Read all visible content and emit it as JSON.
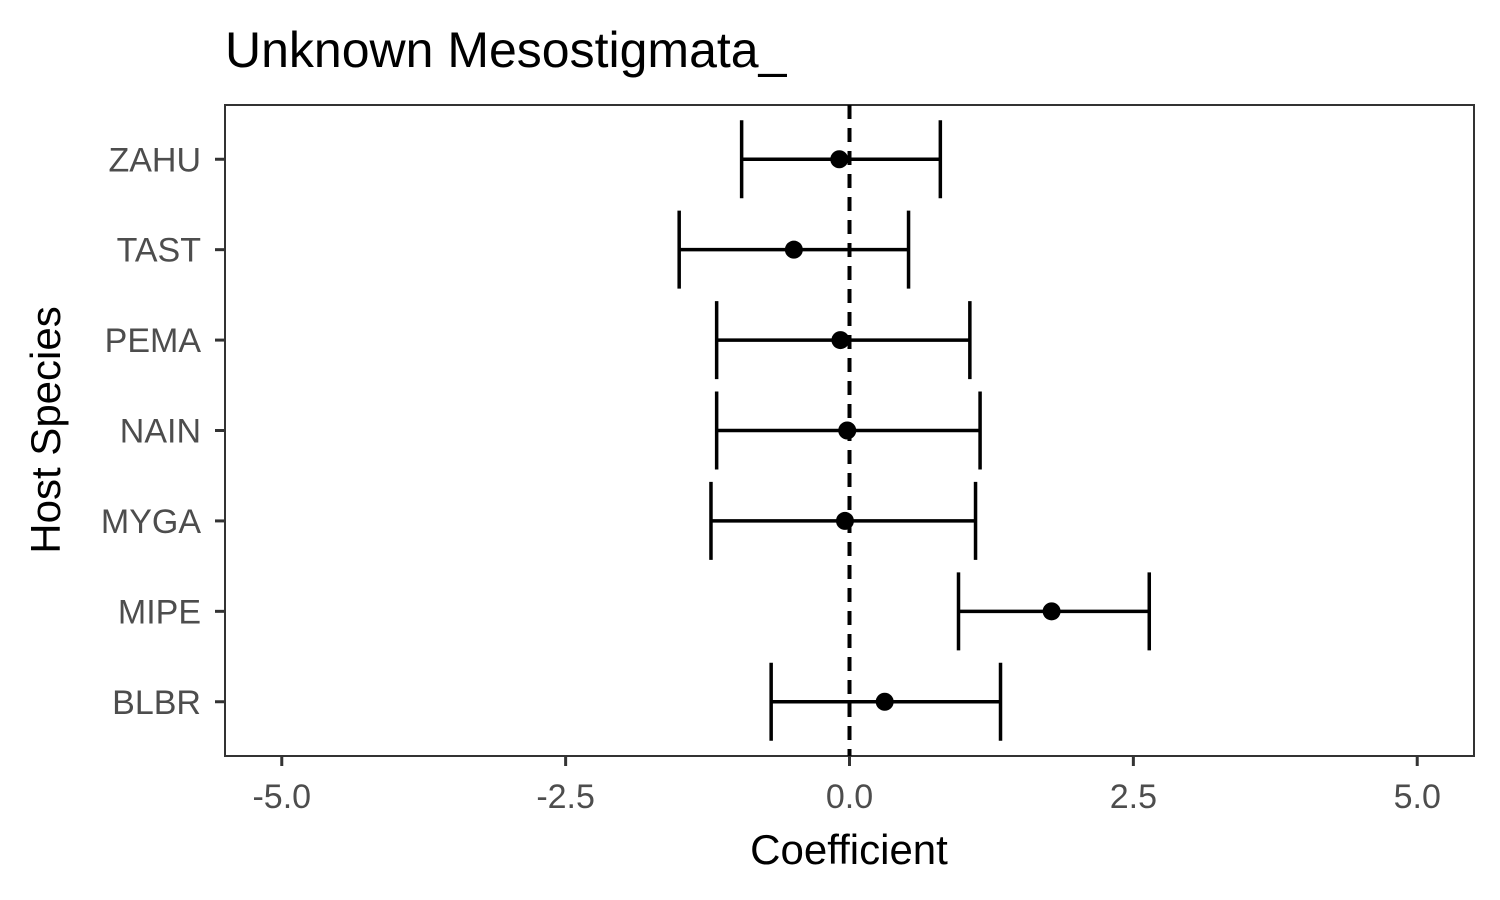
{
  "chart_data": {
    "type": "scatter",
    "subtype": "coefficient-plot-with-error-bars",
    "title": "Unknown Mesostigmata_",
    "xlabel": "Coefficient",
    "ylabel": "Host Species",
    "xlim": [
      -5.5,
      5.5
    ],
    "xticks": [
      -5.0,
      -2.5,
      0.0,
      2.5,
      5.0
    ],
    "xtick_labels": [
      "-5.0",
      "-2.5",
      "0.0",
      "2.5",
      "5.0"
    ],
    "reference_line": {
      "x": 0.0,
      "style": "dashed"
    },
    "categories": [
      "BLBR",
      "MIPE",
      "MYGA",
      "NAIN",
      "PEMA",
      "TAST",
      "ZAHU"
    ],
    "points": [
      {
        "label": "BLBR",
        "estimate": 0.31,
        "lower": -0.69,
        "upper": 1.33
      },
      {
        "label": "MIPE",
        "estimate": 1.78,
        "lower": 0.96,
        "upper": 2.64
      },
      {
        "label": "MYGA",
        "estimate": -0.04,
        "lower": -1.22,
        "upper": 1.11
      },
      {
        "label": "NAIN",
        "estimate": -0.02,
        "lower": -1.17,
        "upper": 1.15
      },
      {
        "label": "PEMA",
        "estimate": -0.08,
        "lower": -1.17,
        "upper": 1.06
      },
      {
        "label": "TAST",
        "estimate": -0.49,
        "lower": -1.5,
        "upper": 0.52
      },
      {
        "label": "ZAHU",
        "estimate": -0.09,
        "lower": -0.95,
        "upper": 0.8
      }
    ],
    "grid": false,
    "panel_border": true,
    "legend": "none",
    "colors": {
      "marks": "#000000",
      "tick_text": "#4d4d4d",
      "border": "#333333"
    }
  }
}
